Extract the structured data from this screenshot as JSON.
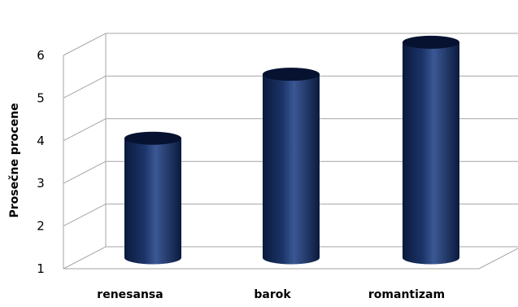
{
  "chart_data": {
    "type": "bar",
    "style": "3d-cylinder",
    "categories": [
      "renesansa",
      "barok",
      "romantizam"
    ],
    "values": [
      3.8,
      5.3,
      6.05
    ],
    "ylabel": "Prosečne procene",
    "xlabel": "",
    "title": "",
    "ylim": [
      1,
      6
    ],
    "yticks": [
      1,
      2,
      3,
      4,
      5,
      6
    ],
    "grid": true,
    "legend": "none",
    "colors": {
      "bar_dark": "#0a1a3c",
      "bar_mid": "#1b3468",
      "bar_light": "#3b5894",
      "bar_top": "#061230",
      "grid": "#a6a6a6"
    }
  }
}
